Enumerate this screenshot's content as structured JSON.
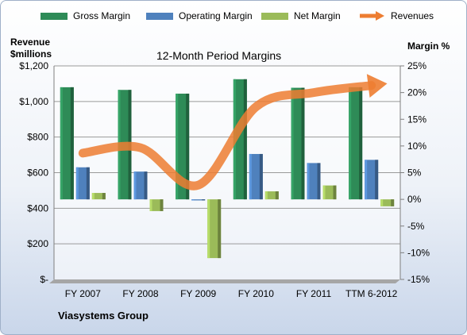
{
  "chart_data": {
    "type": "bar",
    "title": "12-Month Period Margins",
    "categories": [
      "FY 2007",
      "FY 2008",
      "FY 2009",
      "FY 2010",
      "FY 2011",
      "TTM 6-2012"
    ],
    "series": [
      {
        "name": "Gross Margin",
        "axis": "right",
        "kind": "bar",
        "color": "#2e8b57",
        "values": [
          21.0,
          20.5,
          19.8,
          22.5,
          20.9,
          21.0
        ]
      },
      {
        "name": "Operating Margin",
        "axis": "right",
        "kind": "bar",
        "color": "#4f81bd",
        "values": [
          6.0,
          5.2,
          -0.2,
          8.5,
          6.8,
          7.4
        ]
      },
      {
        "name": "Net Margin",
        "axis": "right",
        "kind": "bar",
        "color": "#9bbb59",
        "values": [
          1.2,
          -2.2,
          -11.0,
          1.5,
          2.6,
          -1.3
        ]
      },
      {
        "name": "Revenues",
        "axis": "left",
        "kind": "line",
        "color": "#ed7d31",
        "values": [
          710,
          740,
          530,
          970,
          1050,
          1090
        ]
      }
    ],
    "left_axis": {
      "title_line1": "Revenue",
      "title_line2": "$millions",
      "min": 0,
      "max": 1200,
      "step": 200,
      "ticks": [
        "$-",
        "$200",
        "$400",
        "$600",
        "$800",
        "$1,000",
        "$1,200"
      ]
    },
    "right_axis": {
      "title": "Margin %",
      "min": -15,
      "max": 25,
      "step": 5,
      "ticks": [
        "-15%",
        "-10%",
        "-5%",
        "0%",
        "5%",
        "10%",
        "15%",
        "20%",
        "25%"
      ]
    },
    "grid": true,
    "legend_position": "top"
  },
  "footer": {
    "company": "Viasystems Group"
  }
}
